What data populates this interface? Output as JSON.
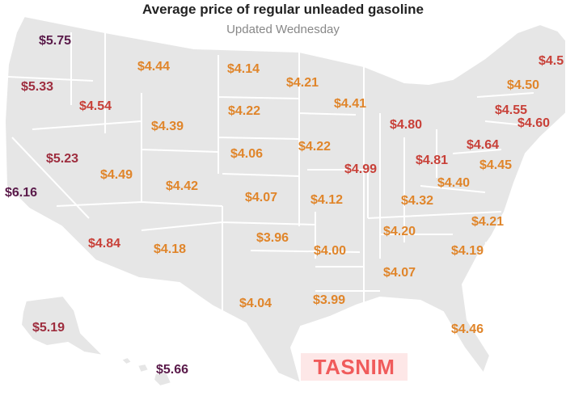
{
  "header": {
    "title": "Average price of regular unleaded gasoline",
    "subtitle": "Updated Wednesday"
  },
  "colors": {
    "tier_high": "#5a1a4a",
    "tier_mid": "#9e2d3e",
    "tier_upper": "#c84038",
    "tier_low": "#e0852a",
    "land": "#e6e6e6",
    "border": "#ffffff"
  },
  "states": {
    "WA": {
      "price": "$5.75",
      "tier": "high"
    },
    "OR": {
      "price": "$5.33",
      "tier": "mid"
    },
    "CA": {
      "price": "$6.16",
      "tier": "high"
    },
    "NV": {
      "price": "$5.23",
      "tier": "mid"
    },
    "ID": {
      "price": "$4.54",
      "tier": "upper"
    },
    "MT": {
      "price": "$4.44",
      "tier": "low"
    },
    "WY": {
      "price": "$4.39",
      "tier": "low"
    },
    "UT": {
      "price": "$4.49",
      "tier": "low"
    },
    "AZ": {
      "price": "$4.84",
      "tier": "upper"
    },
    "CO": {
      "price": "$4.42",
      "tier": "low"
    },
    "NM": {
      "price": "$4.18",
      "tier": "low"
    },
    "ND": {
      "price": "$4.14",
      "tier": "low"
    },
    "SD": {
      "price": "$4.22",
      "tier": "low"
    },
    "NE": {
      "price": "$4.06",
      "tier": "low"
    },
    "KS": {
      "price": "$4.07",
      "tier": "low"
    },
    "OK": {
      "price": "$3.96",
      "tier": "low"
    },
    "TX": {
      "price": "$4.04",
      "tier": "low"
    },
    "MN": {
      "price": "$4.21",
      "tier": "low"
    },
    "IA": {
      "price": "$4.22",
      "tier": "low"
    },
    "MO": {
      "price": "$4.12",
      "tier": "low"
    },
    "AR": {
      "price": "$4.00",
      "tier": "low"
    },
    "LA": {
      "price": "$3.99",
      "tier": "low"
    },
    "WI": {
      "price": "$4.41",
      "tier": "low"
    },
    "IL": {
      "price": "$4.99",
      "tier": "upper"
    },
    "MI": {
      "price": "$4.80",
      "tier": "upper"
    },
    "IN": {
      "price": "$4.81",
      "tier": "upper"
    },
    "OH": {
      "price": "$4.64",
      "tier": "upper"
    },
    "KY": {
      "price": "$4.32",
      "tier": "low"
    },
    "TN": {
      "price": "$4.20",
      "tier": "low"
    },
    "MS": {
      "price": "$4.07",
      "tier": "low"
    },
    "WV": {
      "price": "$4.40",
      "tier": "low"
    },
    "PA": {
      "price": "$4.45",
      "tier": "low"
    },
    "NY": {
      "price": "$4.55",
      "tier": "upper"
    },
    "VT": {
      "price": "$4.50",
      "tier": "low"
    },
    "ME": {
      "price": "$4.5",
      "tier": "upper"
    },
    "CT": {
      "price": "$4.60",
      "tier": "upper"
    },
    "NC": {
      "price": "$4.21",
      "tier": "low"
    },
    "SC": {
      "price": "$4.19",
      "tier": "low"
    },
    "FL": {
      "price": "$4.46",
      "tier": "low"
    },
    "AK": {
      "price": "$5.19",
      "tier": "mid"
    },
    "HI": {
      "price": "$5.66",
      "tier": "high"
    }
  },
  "watermark": "TASNIM"
}
